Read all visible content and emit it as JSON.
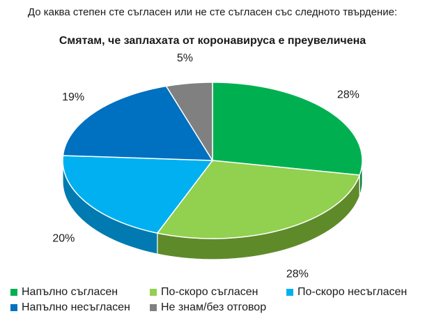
{
  "chart_data": {
    "type": "pie",
    "subtitle": "До каква степен сте съгласен или не сте съгласен със следното твърдение:",
    "title": "Смятам, че заплахата от коронавируса е преувеличена",
    "categories": [
      "Напълно съгласен",
      "По-скоро съгласен",
      "По-скоро несъгласен",
      "Напълно несъгласен",
      "Не знам/без отговор"
    ],
    "values": [
      28,
      28,
      20,
      19,
      5
    ],
    "labels": [
      "28%",
      "28%",
      "20%",
      "19%",
      "5%"
    ],
    "colors": [
      "#00b050",
      "#92d050",
      "#00b0f0",
      "#0070c0",
      "#808080"
    ],
    "side_colors": [
      "#007a38",
      "#5f8a2a",
      "#007ab0",
      "#004f88",
      "#5a5a5a"
    ],
    "legend_position": "bottom"
  }
}
